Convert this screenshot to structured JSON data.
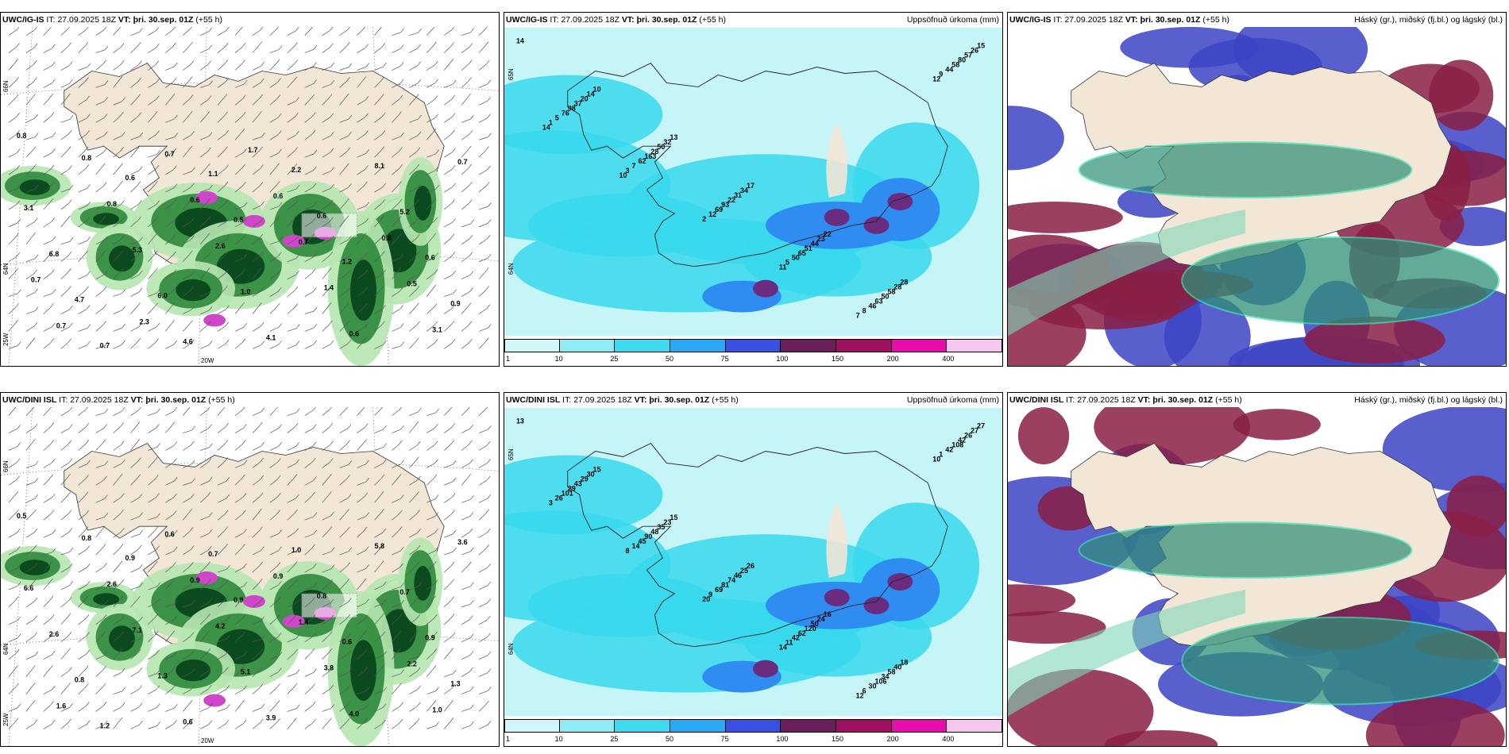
{
  "colors": {
    "land": "#f2e6d6",
    "sea_precip_light": "#c6f5f7",
    "cyan": "#38d8ec",
    "blue_mid": "#2f8cf0",
    "purple": "#6a2c7e",
    "green_dark": "#0b4a1f",
    "green_light": "#b6e7b0",
    "magenta": "#d046c8",
    "cloud_high_green": "#2f8f78",
    "cloud_mid_red": "#8a1f44",
    "cloud_low_blue": "#3c44c4"
  },
  "panels": [
    {
      "row": 0,
      "col": 0,
      "model": "UWC/IG-IS",
      "it_label": "IT:",
      "it_value": "27.09.2025 18Z",
      "vt_label": "VT:",
      "vt_value": "þri. 30.sep. 01Z",
      "lead": "(+55 h)",
      "right_title": "",
      "type": "wind_precip",
      "lat_labels": [
        "66N",
        "64N",
        "25W"
      ],
      "lon_label": "20W",
      "numbers": [
        "0.8",
        "0.6",
        "0.5",
        "1.2",
        "0.9",
        "0.7",
        "1.1",
        "0.6",
        "0.6",
        "4.7",
        "4.6",
        "2.2",
        "5.2",
        "6.8",
        "6.0",
        "4.1",
        "8.1",
        "3.1",
        "5.3",
        "1.0",
        "0.6",
        "0.7",
        "0.8",
        "2.6",
        "1.4",
        "3.1",
        "0.8",
        "0.6",
        "0.7",
        "0.5",
        "0.7",
        "0.7",
        "0.6",
        "0.8",
        "0.7",
        "2.3",
        "1.7"
      ]
    },
    {
      "row": 0,
      "col": 1,
      "model": "UWC/IG-IS",
      "it_label": "IT:",
      "it_value": "27.09.2025 18Z",
      "vt_label": "VT:",
      "vt_value": "þri. 30.sep. 01Z",
      "lead": "(+55 h)",
      "right_title": "Uppsöfnuð úrkoma (mm)",
      "type": "accum_precip",
      "lat_labels": [
        "65N",
        "64N"
      ],
      "numbers": [
        "14",
        "10",
        "13",
        "17",
        "22",
        "28",
        "15",
        "14",
        "32",
        "34",
        "23",
        "28",
        "26",
        "20",
        "50",
        "31",
        "44",
        "58",
        "57",
        "37",
        "28",
        "22",
        "51",
        "50",
        "80",
        "98",
        "163",
        "93",
        "65",
        "63",
        "58",
        "76",
        "62",
        "69",
        "50",
        "46",
        "44",
        "5",
        "7",
        "12",
        "5",
        "8",
        "9",
        "1",
        "3",
        "2",
        "11",
        "7",
        "12",
        "14",
        "10"
      ],
      "colorbar": {
        "labels": [
          "1",
          "10",
          "25",
          "50",
          "75",
          "100",
          "150",
          "200",
          "400"
        ],
        "colors": [
          "#d2f7f8",
          "#8febf4",
          "#3ed9ef",
          "#2aa8f4",
          "#3a50e0",
          "#6a1f5c",
          "#a01060",
          "#e80caa",
          "#f6c6ef"
        ]
      }
    },
    {
      "row": 0,
      "col": 2,
      "model": "UWC/IG-IS",
      "it_label": "IT:",
      "it_value": "27.09.2025 18Z",
      "vt_label": "VT:",
      "vt_value": "þri. 30.sep. 01Z",
      "lead": "(+55 h)",
      "right_title": "Háský (gr.), miðský (fj.bl.) og lágský (bl.)",
      "type": "clouds"
    },
    {
      "row": 1,
      "col": 0,
      "model": "UWC/DINI ISL",
      "it_label": "IT:",
      "it_value": "27.09.2025 18Z",
      "vt_label": "VT:",
      "vt_value": "þri. 30.sep. 01Z",
      "lead": "(+55 h)",
      "right_title": "",
      "type": "wind_precip",
      "lat_labels": [
        "66N",
        "64N",
        "25W"
      ],
      "lon_label": "20W",
      "numbers": [
        "0.5",
        "0.9",
        "0.9",
        "0.6",
        "1.3",
        "1.2",
        "0.7",
        "0.8",
        "0.9",
        "0.8",
        "0.6",
        "1.0",
        "0.7",
        "2.6",
        "1.3",
        "3.9",
        "5.8",
        "6.6",
        "7.1",
        "5.1",
        "4.0",
        "3.6",
        "2.6",
        "4.2",
        "3.8",
        "1.0",
        "0.8",
        "0.9",
        "1.4",
        "2.2",
        "1.6",
        "0.6",
        "0.9"
      ],
      "numbers_note": ""
    },
    {
      "row": 1,
      "col": 1,
      "model": "UWC/DINI ISL",
      "it_label": "IT:",
      "it_value": "27.09.2025 18Z",
      "vt_label": "VT:",
      "vt_value": "þri. 30.sep. 01Z",
      "lead": "(+55 h)",
      "right_title": "Uppsöfnuð úrkoma (mm)",
      "type": "accum_precip",
      "lat_labels": [
        "65N",
        "64N"
      ],
      "numbers": [
        "13",
        "15",
        "15",
        "26",
        "16",
        "18",
        "27",
        "30",
        "23",
        "25",
        "24",
        "40",
        "27",
        "29",
        "35",
        "46",
        "50",
        "58",
        "26",
        "43",
        "48",
        "74",
        "120",
        "34",
        "42",
        "29",
        "90",
        "81",
        "62",
        "106",
        "108",
        "101",
        "45",
        "69",
        "42",
        "30",
        "42",
        "26",
        "14",
        "9",
        "11",
        "6",
        "1",
        "3",
        "8",
        "20",
        "14",
        "12",
        "10"
      ],
      "colorbar": {
        "labels": [
          "1",
          "10",
          "25",
          "50",
          "75",
          "100",
          "150",
          "200",
          "400"
        ],
        "colors": [
          "#d2f7f8",
          "#8febf4",
          "#3ed9ef",
          "#2aa8f4",
          "#3a50e0",
          "#6a1f5c",
          "#a01060",
          "#e80caa",
          "#f6c6ef"
        ]
      }
    },
    {
      "row": 1,
      "col": 2,
      "model": "UWC/DINI ISL",
      "it_label": "IT:",
      "it_value": "27.09.2025 18Z",
      "vt_label": "VT:",
      "vt_value": "þri. 30.sep. 01Z",
      "lead": "(+55 h)",
      "right_title": "Háský (gr.), miðský (fj.bl.) og lágský (bl.)",
      "type": "clouds"
    }
  ]
}
